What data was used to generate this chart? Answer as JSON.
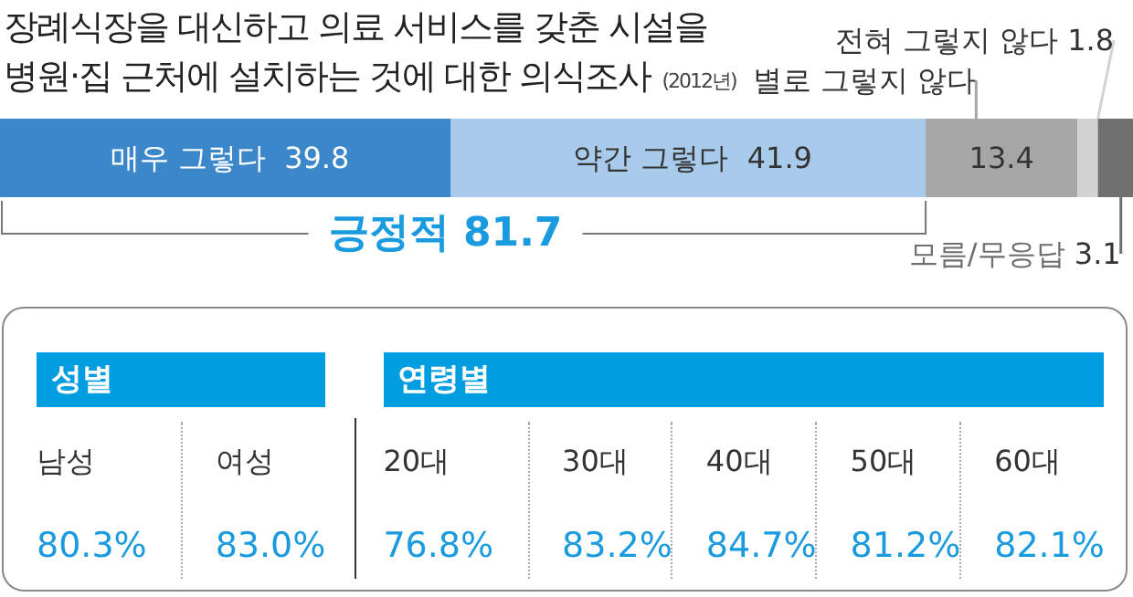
{
  "chart_data": [
    {
      "type": "bar",
      "orientation": "horizontal",
      "stacked": true,
      "title": "장례식장을 대신하고 의료 서비스를 갖춘 시설을\n병원·집 근처에 설치하는 것에 대한 의식조사",
      "subtitle": "(2012년)",
      "categories": [
        null
      ],
      "data_labels": true,
      "tick_labels": false,
      "series": [
        {
          "name": "매우 그렇다",
          "color": "#3b87c9",
          "values": [
            39.8
          ]
        },
        {
          "name": "약간 그렇다",
          "color": "#a9cbeb",
          "values": [
            41.9
          ]
        },
        {
          "name": "별로 그렇지 않다",
          "color": "#a6a6a6",
          "values": [
            13.4
          ]
        },
        {
          "name": "전혀 그렇지 않다",
          "color": "#d2d2d2",
          "values": [
            1.8
          ]
        },
        {
          "name": "모름/무응답",
          "color": "#6f6f6f",
          "values": [
            3.1
          ]
        }
      ],
      "annotations": [
        "긍정적 81.7"
      ]
    },
    {
      "type": "other",
      "title": "성별",
      "categories": [
        "남성",
        "여성"
      ],
      "values": [
        80.3,
        83.0
      ],
      "value_labels": [
        "80.3%",
        "83.0%"
      ]
    },
    {
      "type": "other",
      "title": "연령별",
      "categories": [
        "20대",
        "30대",
        "40대",
        "50대",
        "60대"
      ],
      "values": [
        76.8,
        83.2,
        84.7,
        81.2,
        82.1
      ],
      "value_labels": [
        "76.8%",
        "83.2%",
        "84.7%",
        "81.2%",
        "82.1%"
      ]
    }
  ]
}
